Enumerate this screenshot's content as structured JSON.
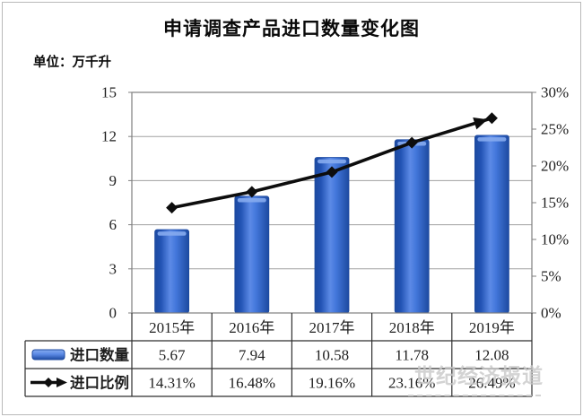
{
  "page": {
    "title": "申请调查产品进口数量变化图",
    "unit_label": "单位：万千升"
  },
  "watermark": {
    "line1": "世纪经济报道"
  },
  "colors": {
    "bar_edge": "#2253b4",
    "bar_mid": "#5c8ae6",
    "bar_dark": "#1d4aa0",
    "bar_cap": "#86abee",
    "line_series": "#0d0d0d",
    "grid_line": "#a0a0a0",
    "plot_border": "#7f7f7f",
    "table_border": "#2f2f2f",
    "axis_text": "#3a3a3a",
    "cell_text": "#1f1f1f"
  },
  "chart_data": {
    "type": "bar",
    "subtype": "combo bar + line with data table",
    "title": "申请调查产品进口数量变化图",
    "unit": "万千升",
    "categories": [
      "2015年",
      "2016年",
      "2017年",
      "2018年",
      "2019年"
    ],
    "series": [
      {
        "name": "进口数量",
        "type": "bar",
        "axis": "left",
        "values": [
          5.67,
          7.94,
          10.58,
          11.78,
          12.08
        ],
        "value_labels": [
          "5.67",
          "7.94",
          "10.58",
          "11.78",
          "12.08"
        ]
      },
      {
        "name": "进口比例",
        "type": "line",
        "axis": "right",
        "values": [
          14.31,
          16.48,
          19.16,
          23.16,
          26.49
        ],
        "value_labels": [
          "14.31%",
          "16.48%",
          "19.16%",
          "23.16%",
          "26.49%"
        ]
      }
    ],
    "left_axis": {
      "range": [
        0,
        15
      ],
      "ticks": [
        0,
        3,
        6,
        9,
        12,
        15
      ],
      "tick_labels": [
        "0",
        "3",
        "6",
        "9",
        "12",
        "15"
      ]
    },
    "right_axis": {
      "range": [
        0,
        30
      ],
      "ticks": [
        0,
        5,
        10,
        15,
        20,
        25,
        30
      ],
      "tick_labels": [
        "0%",
        "5%",
        "10%",
        "15%",
        "20%",
        "25%",
        "30%"
      ]
    },
    "grid": "horizontal major gridlines (primary axis)",
    "legend_position": "data table left column"
  }
}
